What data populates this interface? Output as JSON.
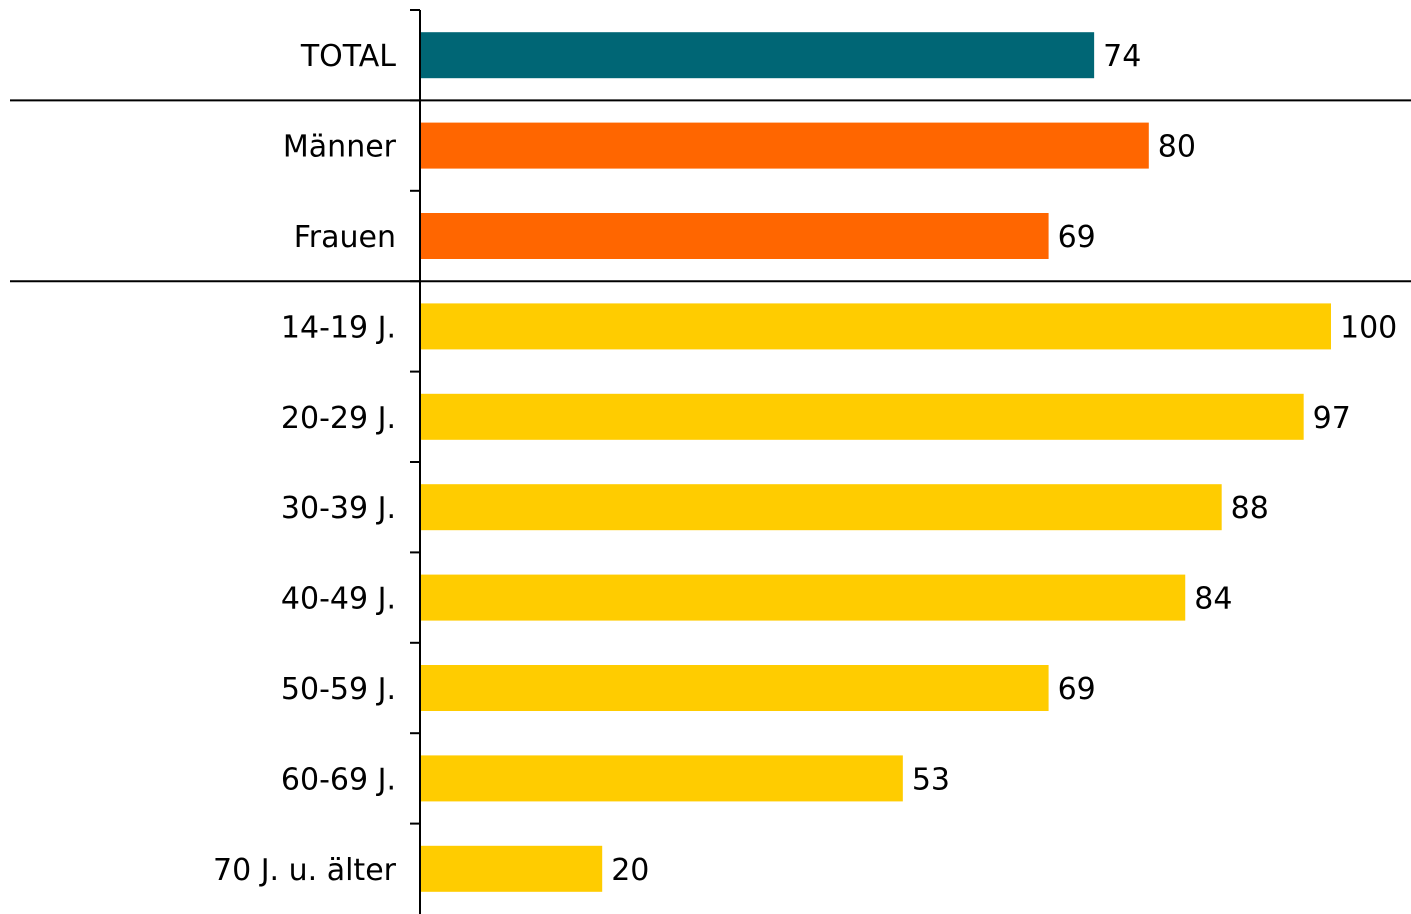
{
  "chart_data": {
    "type": "bar",
    "orientation": "horizontal",
    "title": "",
    "xlabel": "",
    "ylabel": "",
    "xlim": [
      0,
      100
    ],
    "grid": false,
    "legend": "none",
    "categories": [
      "TOTAL",
      "Männer",
      "Frauen",
      "14-19 J.",
      "20-29 J.",
      "30-39 J.",
      "40-49 J.",
      "50-59 J.",
      "60-69 J.",
      "70 J. u. älter"
    ],
    "values": [
      74,
      80,
      69,
      100,
      97,
      88,
      84,
      69,
      53,
      20
    ],
    "value_labels": [
      "74",
      "80",
      "69",
      "100",
      "97",
      "88",
      "84",
      "69",
      "53",
      "20"
    ],
    "groups": [
      {
        "members": [
          "TOTAL"
        ],
        "color": "#006675"
      },
      {
        "members": [
          "Männer",
          "Frauen"
        ],
        "color": "#ff6600"
      },
      {
        "members": [
          "14-19 J.",
          "20-29 J.",
          "30-39 J.",
          "40-49 J.",
          "50-59 J.",
          "60-69 J.",
          "70 J. u. älter"
        ],
        "color": "#ffcc00"
      }
    ],
    "separators_after": [
      "TOTAL",
      "Frauen"
    ]
  }
}
